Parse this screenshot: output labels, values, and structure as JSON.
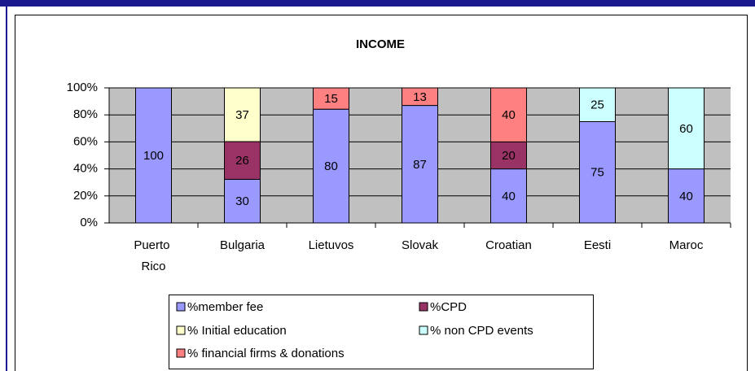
{
  "chart_data": {
    "type": "bar",
    "stacking": "percent",
    "title": "INCOME",
    "categories": [
      "Puerto Rico",
      "Bulgaria",
      "Lietuvos",
      "Slovak",
      "Croatian",
      "Eesti",
      "Maroc"
    ],
    "series": [
      {
        "name": "%member fee",
        "color": "#9999ff",
        "values": [
          100,
          30,
          80,
          87,
          40,
          75,
          40
        ]
      },
      {
        "name": "%CPD",
        "color": "#993366",
        "values": [
          null,
          26,
          null,
          null,
          20,
          null,
          null
        ]
      },
      {
        "name": "% Initial education",
        "color": "#ffffcc",
        "values": [
          null,
          37,
          null,
          null,
          null,
          null,
          null
        ]
      },
      {
        "name": "% non CPD events",
        "color": "#ccffff",
        "values": [
          null,
          null,
          null,
          null,
          null,
          25,
          60
        ]
      },
      {
        "name": "% financial firms & donations",
        "color": "#ff8080",
        "values": [
          null,
          null,
          15,
          13,
          40,
          null,
          null
        ]
      }
    ],
    "ylim": [
      0,
      100
    ],
    "yticks": [
      {
        "value": 0,
        "label": "0%"
      },
      {
        "value": 20,
        "label": "20%"
      },
      {
        "value": 40,
        "label": "40%"
      },
      {
        "value": 60,
        "label": "60%"
      },
      {
        "value": 80,
        "label": "80%"
      },
      {
        "value": 100,
        "label": "100%"
      }
    ],
    "grid": true
  }
}
